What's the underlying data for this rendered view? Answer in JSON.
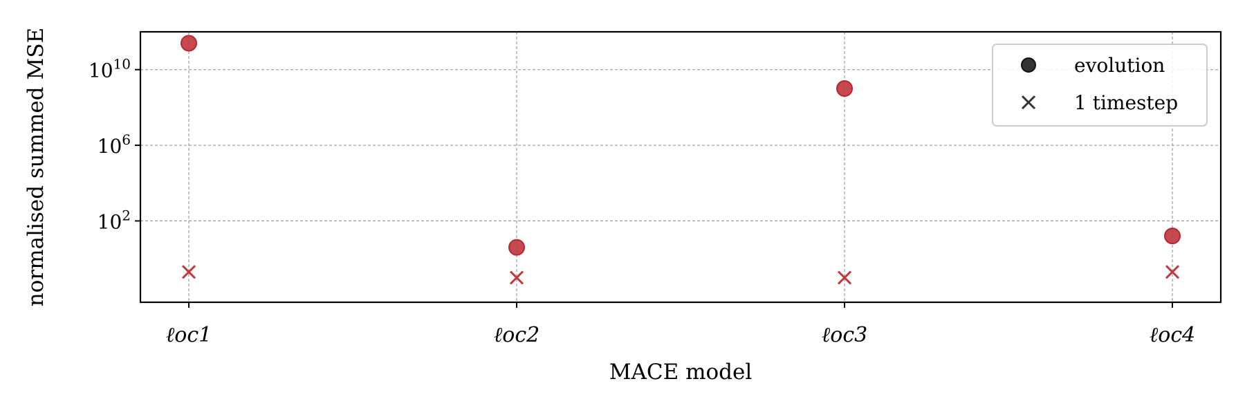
{
  "chart_data": {
    "type": "scatter",
    "categories": [
      "ℓoc1",
      "ℓoc2",
      "ℓoc3",
      "ℓoc4"
    ],
    "xlabel": "MACE model",
    "ylabel": "normalised summed MSE",
    "yscale": "log",
    "ylim": [
      0.005,
      1000000000000.0
    ],
    "yticks": [
      {
        "base": "10",
        "exp": "2",
        "value": 100
      },
      {
        "base": "10",
        "exp": "6",
        "value": 1000000
      },
      {
        "base": "10",
        "exp": "10",
        "value": 10000000000
      }
    ],
    "grid": true,
    "legend_position": "top-right",
    "series": [
      {
        "name": "evolution",
        "marker": "circle",
        "color": "#c0393f",
        "values": [
          250000000000.0,
          4,
          1000000000.0,
          16
        ]
      },
      {
        "name": "1 timestep",
        "marker": "x",
        "color": "#c0393f",
        "values": [
          0.2,
          0.1,
          0.1,
          0.2
        ]
      }
    ],
    "legend_marker_color": "#333333"
  }
}
